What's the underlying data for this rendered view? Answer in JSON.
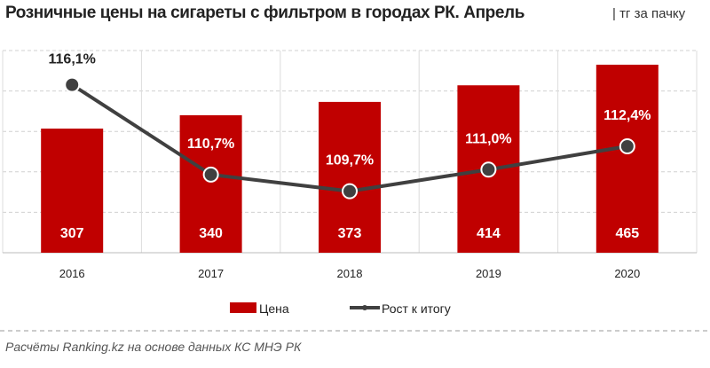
{
  "header": {
    "title": "Розничные цены на сигареты с фильтром в городах РК. Апрель",
    "unit": "| тг за пачку"
  },
  "chart_data": {
    "type": "bar+line",
    "categories": [
      "2016",
      "2017",
      "2018",
      "2019",
      "2020"
    ],
    "series": [
      {
        "name": "Цена",
        "type": "bar",
        "axis": "primary",
        "values": [
          307,
          340,
          373,
          414,
          465
        ],
        "labels": [
          "307",
          "340",
          "373",
          "414",
          "465"
        ],
        "color": "#C00000"
      },
      {
        "name": "Рост к итогу",
        "type": "line",
        "axis": "secondary",
        "values": [
          116.1,
          110.7,
          109.7,
          111.0,
          112.4
        ],
        "labels": [
          "116,1%",
          "110,7%",
          "109,7%",
          "111,0%",
          "112,4%"
        ],
        "color": "#404040"
      }
    ],
    "ylim": [
      0,
      500
    ],
    "y2lim": [
      106,
      118.16
    ],
    "grid": true,
    "legend": "bottom"
  },
  "footer": {
    "source": "Расчёты Ranking.kz на основе данных  КС МНЭ РК"
  }
}
